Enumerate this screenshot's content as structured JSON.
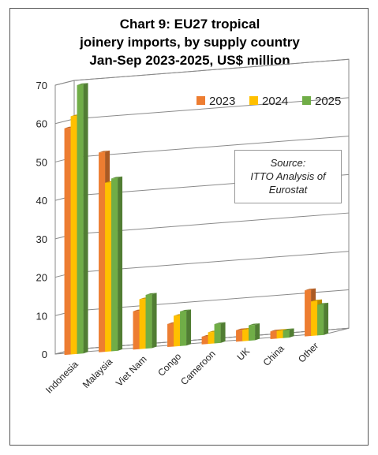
{
  "chart_data": {
    "type": "bar",
    "title_lines": [
      "Chart 9: EU27 tropical",
      "joinery imports, by supply country",
      "Jan-Sep 2023-2025, US$ million"
    ],
    "categories": [
      "Indonesia",
      "Malaysia",
      "Viet Nam",
      "Congo",
      "Cameroon",
      "UK",
      "China",
      "Other"
    ],
    "series": [
      {
        "name": "2023",
        "color": "#ED7D31",
        "values": [
          59,
          52,
          10,
          6,
          2,
          3,
          2,
          12
        ]
      },
      {
        "name": "2024",
        "color": "#FFC000",
        "values": [
          62,
          44,
          13,
          8,
          3,
          3,
          2,
          9
        ]
      },
      {
        "name": "2025",
        "color": "#70AD47",
        "values": [
          70,
          45,
          14,
          9,
          5,
          4,
          2,
          8
        ]
      }
    ],
    "ylim": [
      0,
      70
    ],
    "yticks": [
      0,
      10,
      20,
      30,
      40,
      50,
      60,
      70
    ],
    "grid": true,
    "legend_position": "top-right",
    "annotation": {
      "lines": [
        "Source:",
        "ITTO Analysis of",
        "Eurostat"
      ]
    }
  }
}
